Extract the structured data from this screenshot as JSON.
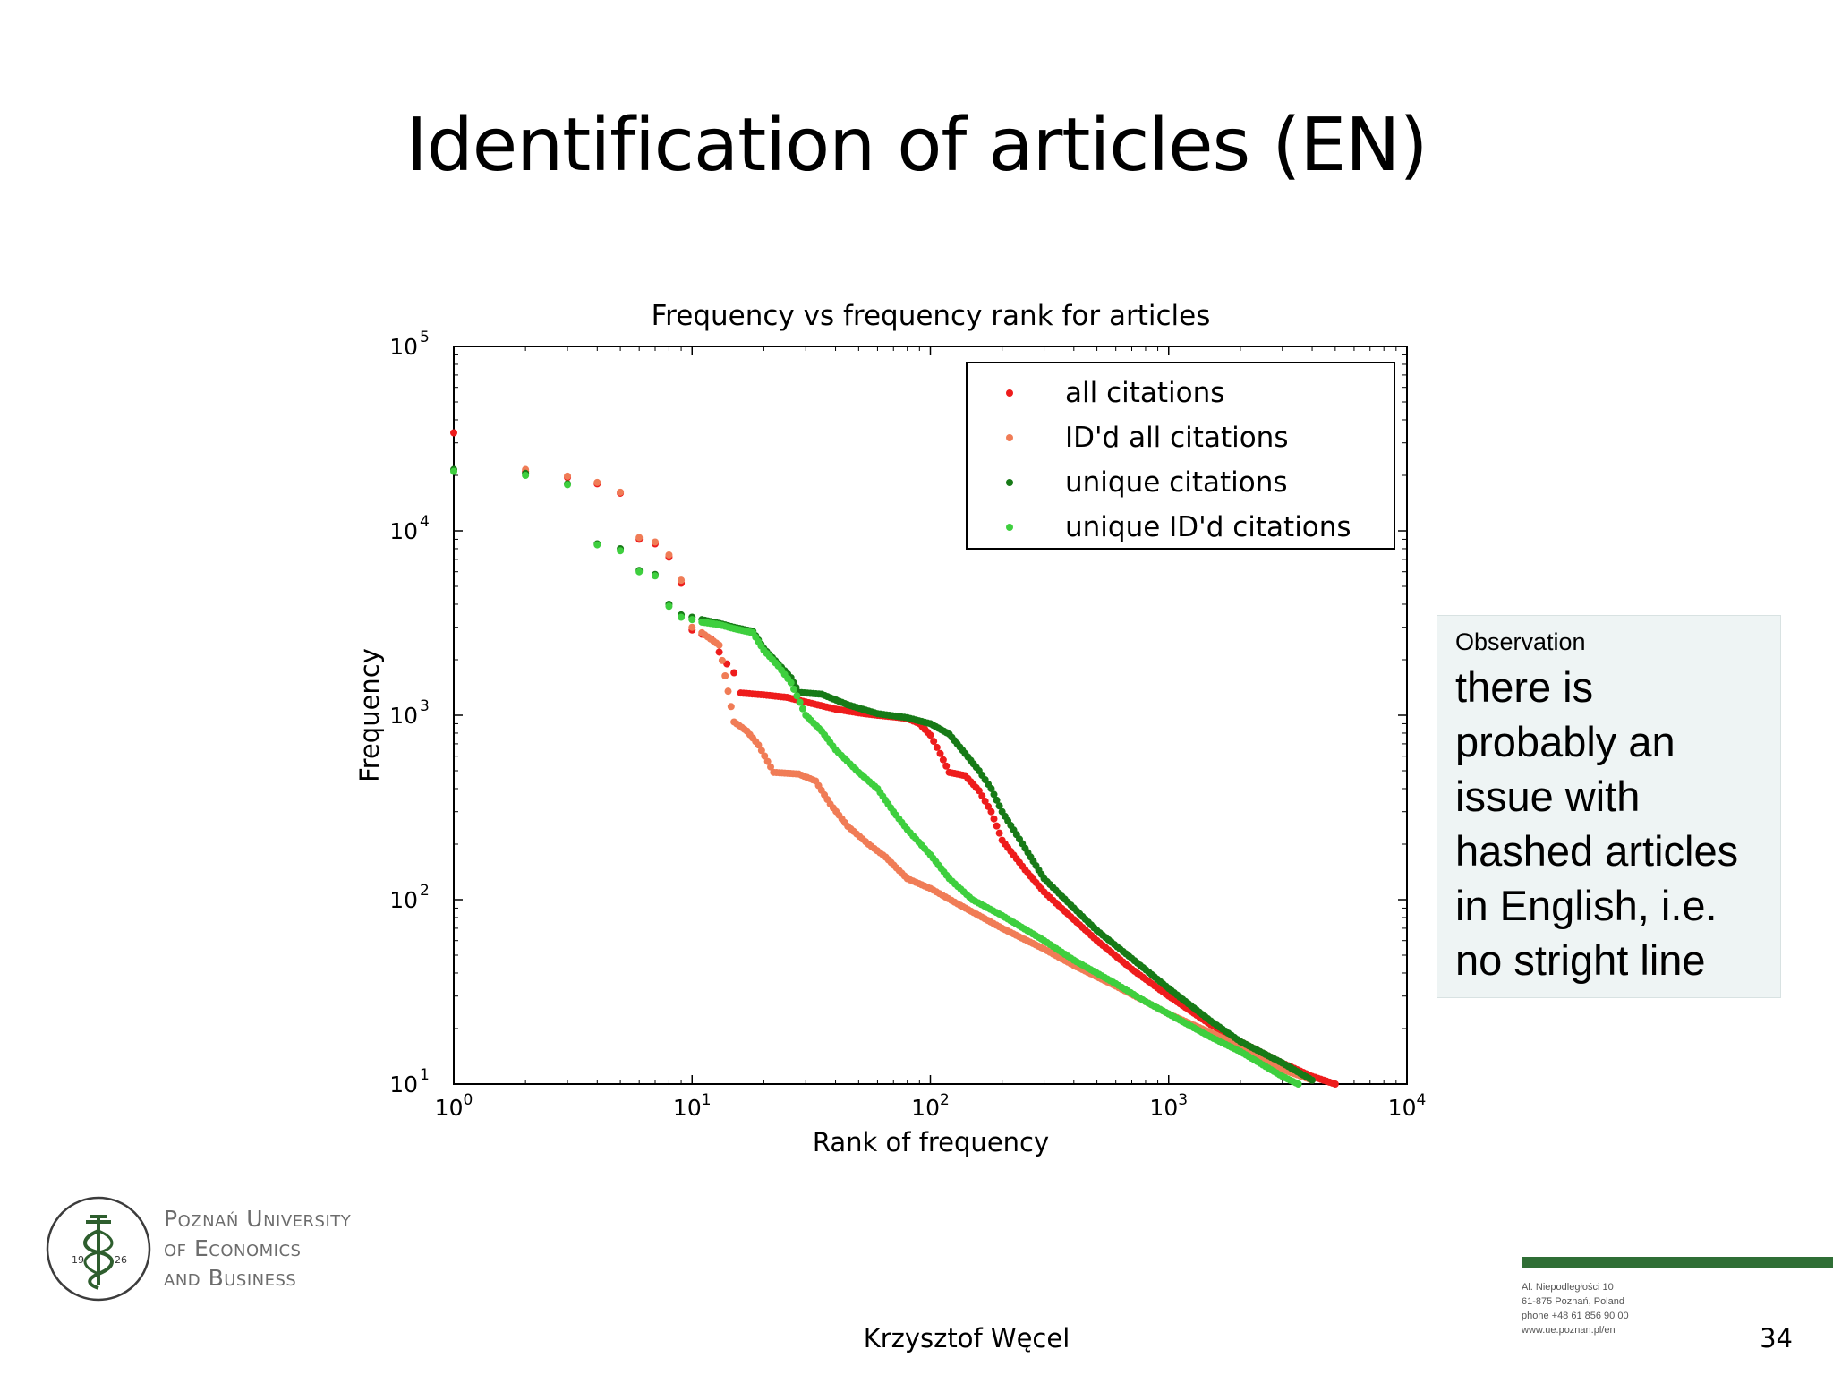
{
  "slide": {
    "title": "Identification of articles (EN)",
    "author": "Krzysztof Węcel",
    "page_number": "34"
  },
  "observation": {
    "label": "Observation",
    "text": "there is probably an issue with hashed articles in English, i.e. no stright line"
  },
  "logo": {
    "line1": "Poznań University",
    "line2": "of Economics",
    "line3": "and Business",
    "year_left": "19",
    "year_right": "26"
  },
  "address": {
    "line1": "Al. Niepodległości 10",
    "line2": "61-875 Poznań, Poland",
    "line3": "phone +48 61 856 90 00",
    "line4": "www.ue.poznan.pl/en"
  },
  "colors": {
    "all_citations": "#ee1c1c",
    "idd_all_citations": "#f07c56",
    "unique_citations": "#177a17",
    "unique_idd_citations": "#3ecf3e",
    "accent_green": "#2f6e35"
  },
  "chart_data": {
    "type": "scatter",
    "title": "Frequency vs frequency rank for articles",
    "xlabel": "Rank of frequency",
    "ylabel": "Frequency",
    "x_scale": "log",
    "y_scale": "log",
    "xlim": [
      1,
      10000
    ],
    "ylim": [
      10,
      100000
    ],
    "x_ticks": [
      1,
      10,
      100,
      1000,
      10000
    ],
    "y_ticks": [
      10,
      100,
      1000,
      10000,
      100000
    ],
    "x_tick_labels": [
      {
        "base": "10",
        "exp": "0"
      },
      {
        "base": "10",
        "exp": "1"
      },
      {
        "base": "10",
        "exp": "2"
      },
      {
        "base": "10",
        "exp": "3"
      },
      {
        "base": "10",
        "exp": "4"
      }
    ],
    "y_tick_labels": [
      {
        "base": "10",
        "exp": "1"
      },
      {
        "base": "10",
        "exp": "2"
      },
      {
        "base": "10",
        "exp": "3"
      },
      {
        "base": "10",
        "exp": "4"
      },
      {
        "base": "10",
        "exp": "5"
      }
    ],
    "legend_position": "top-right",
    "series": [
      {
        "name": "all citations",
        "color": "#ee1c1c",
        "points": [
          [
            1,
            34000
          ],
          [
            2,
            21000
          ],
          [
            3,
            19500
          ],
          [
            4,
            18000
          ],
          [
            5,
            16000
          ],
          [
            6,
            9000
          ],
          [
            7,
            8500
          ],
          [
            8,
            7200
          ],
          [
            9,
            5200
          ],
          [
            10,
            2900
          ],
          [
            11,
            2750
          ],
          [
            12,
            2600
          ],
          [
            13,
            2200
          ],
          [
            14,
            1900
          ],
          [
            15,
            1700
          ],
          [
            16,
            1320
          ],
          [
            20,
            1290
          ],
          [
            25,
            1250
          ],
          [
            30,
            1180
          ],
          [
            40,
            1080
          ],
          [
            50,
            1030
          ],
          [
            60,
            1000
          ],
          [
            70,
            980
          ],
          [
            80,
            960
          ],
          [
            90,
            900
          ],
          [
            100,
            780
          ],
          [
            110,
            620
          ],
          [
            120,
            490
          ],
          [
            140,
            470
          ],
          [
            160,
            390
          ],
          [
            180,
            300
          ],
          [
            200,
            210
          ],
          [
            250,
            145
          ],
          [
            300,
            110
          ],
          [
            400,
            78
          ],
          [
            500,
            60
          ],
          [
            700,
            42
          ],
          [
            1000,
            30
          ],
          [
            1500,
            21
          ],
          [
            2000,
            17
          ],
          [
            3000,
            13
          ],
          [
            4000,
            11
          ],
          [
            5000,
            10
          ]
        ]
      },
      {
        "name": "ID'd all citations",
        "color": "#f07c56",
        "points": [
          [
            2,
            21500
          ],
          [
            3,
            19800
          ],
          [
            4,
            18300
          ],
          [
            5,
            16200
          ],
          [
            6,
            9200
          ],
          [
            7,
            8700
          ],
          [
            8,
            7400
          ],
          [
            9,
            5400
          ],
          [
            10,
            3000
          ],
          [
            11,
            2800
          ],
          [
            13,
            2400
          ],
          [
            15,
            920
          ],
          [
            17,
            820
          ],
          [
            19,
            690
          ],
          [
            22,
            490
          ],
          [
            28,
            480
          ],
          [
            33,
            440
          ],
          [
            38,
            330
          ],
          [
            45,
            250
          ],
          [
            55,
            200
          ],
          [
            65,
            170
          ],
          [
            80,
            130
          ],
          [
            100,
            115
          ],
          [
            130,
            95
          ],
          [
            160,
            82
          ],
          [
            200,
            70
          ],
          [
            300,
            54
          ],
          [
            400,
            44
          ],
          [
            600,
            34
          ],
          [
            800,
            28
          ],
          [
            1000,
            24
          ],
          [
            1500,
            19
          ],
          [
            2000,
            16
          ],
          [
            3000,
            12
          ],
          [
            4000,
            10.5
          ]
        ]
      },
      {
        "name": "unique citations",
        "color": "#177a17",
        "points": [
          [
            1,
            21500
          ],
          [
            2,
            20500
          ],
          [
            3,
            18000
          ],
          [
            4,
            8500
          ],
          [
            5,
            8000
          ],
          [
            6,
            6100
          ],
          [
            7,
            5800
          ],
          [
            8,
            4000
          ],
          [
            9,
            3500
          ],
          [
            10,
            3400
          ],
          [
            11,
            3300
          ],
          [
            13,
            3150
          ],
          [
            15,
            3000
          ],
          [
            18,
            2850
          ],
          [
            20,
            2300
          ],
          [
            23,
            1900
          ],
          [
            26,
            1600
          ],
          [
            28,
            1330
          ],
          [
            35,
            1300
          ],
          [
            45,
            1140
          ],
          [
            60,
            1020
          ],
          [
            80,
            970
          ],
          [
            100,
            900
          ],
          [
            120,
            790
          ],
          [
            140,
            620
          ],
          [
            160,
            500
          ],
          [
            180,
            400
          ],
          [
            200,
            300
          ],
          [
            250,
            190
          ],
          [
            300,
            130
          ],
          [
            400,
            90
          ],
          [
            500,
            68
          ],
          [
            700,
            48
          ],
          [
            1000,
            33
          ],
          [
            1500,
            22
          ],
          [
            2000,
            17
          ],
          [
            3000,
            13
          ],
          [
            4000,
            10.5
          ]
        ]
      },
      {
        "name": "unique ID'd citations",
        "color": "#3ecf3e",
        "points": [
          [
            1,
            21000
          ],
          [
            2,
            20000
          ],
          [
            3,
            17800
          ],
          [
            4,
            8400
          ],
          [
            5,
            7800
          ],
          [
            6,
            6000
          ],
          [
            7,
            5700
          ],
          [
            8,
            3900
          ],
          [
            9,
            3400
          ],
          [
            10,
            3300
          ],
          [
            11,
            3200
          ],
          [
            13,
            3100
          ],
          [
            15,
            2950
          ],
          [
            18,
            2800
          ],
          [
            20,
            2250
          ],
          [
            23,
            1850
          ],
          [
            26,
            1500
          ],
          [
            30,
            1000
          ],
          [
            35,
            820
          ],
          [
            40,
            650
          ],
          [
            50,
            490
          ],
          [
            60,
            400
          ],
          [
            70,
            300
          ],
          [
            80,
            240
          ],
          [
            100,
            175
          ],
          [
            120,
            130
          ],
          [
            150,
            100
          ],
          [
            200,
            82
          ],
          [
            300,
            60
          ],
          [
            400,
            47
          ],
          [
            600,
            35
          ],
          [
            800,
            28
          ],
          [
            1000,
            24
          ],
          [
            1500,
            18
          ],
          [
            2000,
            15
          ],
          [
            3000,
            11
          ],
          [
            3500,
            10
          ]
        ]
      }
    ]
  }
}
